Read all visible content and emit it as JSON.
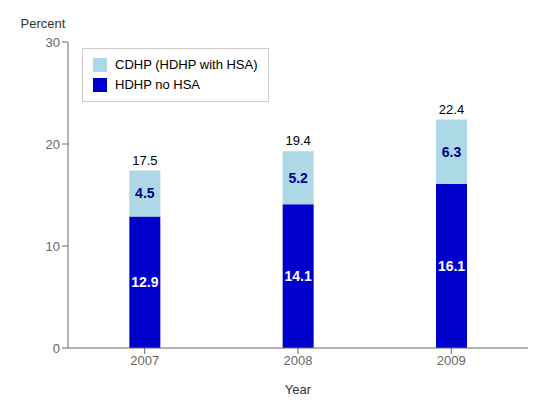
{
  "chart_data": {
    "type": "bar",
    "stacked": true,
    "categories": [
      "2007",
      "2008",
      "2009"
    ],
    "series": [
      {
        "name": "HDHP no HSA",
        "color": "#0000cc",
        "values": [
          12.9,
          14.1,
          16.1
        ]
      },
      {
        "name": "CDHP (HDHP with HSA)",
        "color": "#add8e6",
        "values": [
          4.5,
          5.2,
          6.3
        ]
      }
    ],
    "totals": [
      17.5,
      19.4,
      22.4
    ],
    "xlabel": "Year",
    "ylabel": "Percent",
    "ylim": [
      0,
      30
    ],
    "yticks": [
      0,
      10,
      20,
      30
    ],
    "grid": false,
    "legend": "upper left",
    "data_labels": true
  }
}
